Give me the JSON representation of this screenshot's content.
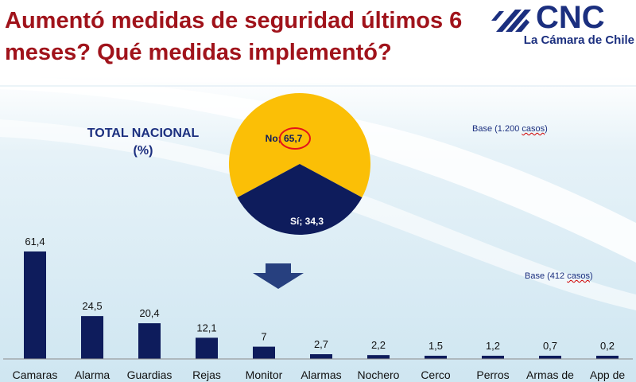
{
  "title": "Aumentó medidas de seguridad últimos 6 meses?  Qué medidas implementó?",
  "logo": {
    "name": "CNC",
    "subtitle": "La Cámara de Chile"
  },
  "total_label": {
    "line1": "TOTAL NACIONAL",
    "line2": "(%)"
  },
  "base_pie": {
    "prefix": "Base  (1.200 ",
    "unit": "casos",
    "suffix": ")"
  },
  "base_bars": {
    "prefix": "Base  (412 ",
    "unit": "casos",
    "suffix": ")"
  },
  "colors": {
    "title": "#a0131b",
    "navy": "#0e1c5c",
    "gold": "#fbbf06",
    "highlight": "#e3131b"
  },
  "chart_data": [
    {
      "type": "pie",
      "slices": [
        {
          "label": "No; 65,7",
          "value": 65.7,
          "color": "#fbbf06"
        },
        {
          "label": "Sí; 34,3",
          "value": 34.3,
          "color": "#0e1c5c"
        }
      ]
    },
    {
      "type": "bar",
      "categories": [
        "Camaras",
        "Alarma",
        "Guardias",
        "Rejas",
        "Monitor",
        "Alarmas",
        "Nochero",
        "Cerco",
        "Perros",
        "Armas de",
        "App de"
      ],
      "values": [
        61.4,
        24.5,
        20.4,
        12.1,
        7,
        2.7,
        2.2,
        1.5,
        1.2,
        0.7,
        0.2
      ],
      "value_labels": [
        "61,4",
        "24,5",
        "20,4",
        "12,1",
        "7",
        "2,7",
        "2,2",
        "1,5",
        "1,2",
        "0,7",
        "0,2"
      ],
      "ylim": [
        0,
        61.4
      ],
      "color": "#0e1c5c"
    }
  ]
}
